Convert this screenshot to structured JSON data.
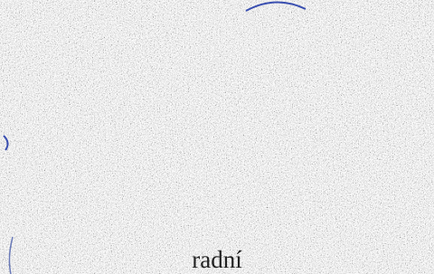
{
  "caption": "radní"
}
